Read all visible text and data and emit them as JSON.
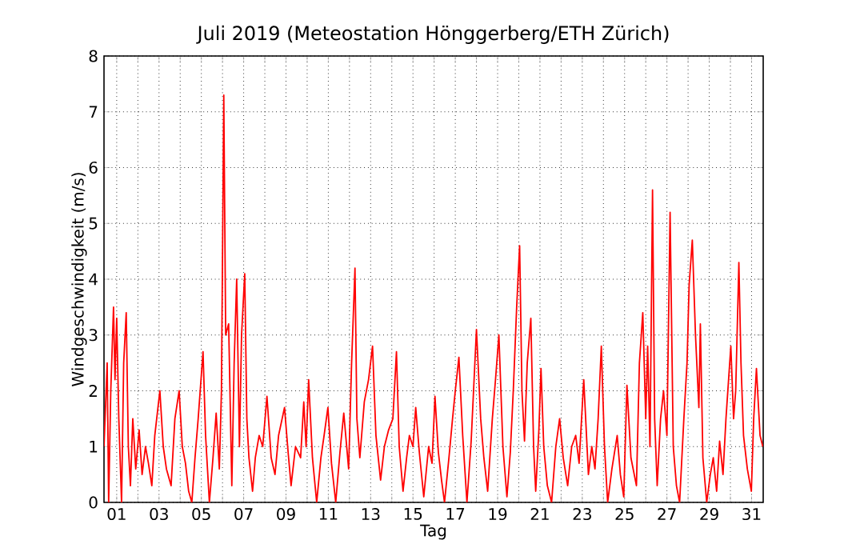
{
  "chart_data": {
    "type": "line",
    "title": "Juli 2019  (Meteostation Hönggerberg/ETH Zürich)",
    "xlabel": "Tag",
    "ylabel": "Windgeschwindigkeit (m/s)",
    "xlim": [
      0.4,
      31.55
    ],
    "ylim": [
      0,
      8
    ],
    "xticks": [
      {
        "value": 1,
        "label": "01"
      },
      {
        "value": 2,
        "label": null
      },
      {
        "value": 3,
        "label": "03"
      },
      {
        "value": 4,
        "label": null
      },
      {
        "value": 5,
        "label": "05"
      },
      {
        "value": 6,
        "label": null
      },
      {
        "value": 7,
        "label": "07"
      },
      {
        "value": 8,
        "label": null
      },
      {
        "value": 9,
        "label": "09"
      },
      {
        "value": 10,
        "label": null
      },
      {
        "value": 11,
        "label": "11"
      },
      {
        "value": 12,
        "label": null
      },
      {
        "value": 13,
        "label": "13"
      },
      {
        "value": 14,
        "label": null
      },
      {
        "value": 15,
        "label": "15"
      },
      {
        "value": 16,
        "label": null
      },
      {
        "value": 17,
        "label": "17"
      },
      {
        "value": 18,
        "label": null
      },
      {
        "value": 19,
        "label": "19"
      },
      {
        "value": 20,
        "label": null
      },
      {
        "value": 21,
        "label": "21"
      },
      {
        "value": 22,
        "label": null
      },
      {
        "value": 23,
        "label": "23"
      },
      {
        "value": 24,
        "label": null
      },
      {
        "value": 25,
        "label": "25"
      },
      {
        "value": 26,
        "label": null
      },
      {
        "value": 27,
        "label": "27"
      },
      {
        "value": 28,
        "label": null
      },
      {
        "value": 29,
        "label": "29"
      },
      {
        "value": 30,
        "label": null
      },
      {
        "value": 31,
        "label": "31"
      }
    ],
    "yticks": [
      0,
      1,
      2,
      3,
      4,
      5,
      6,
      7,
      8
    ],
    "grid": true,
    "series": [
      {
        "color": "#ff0000",
        "x": [
          0.4,
          0.55,
          0.62,
          0.72,
          0.85,
          0.92,
          1.0,
          1.1,
          1.23,
          1.33,
          1.45,
          1.55,
          1.65,
          1.76,
          1.9,
          2.06,
          2.2,
          2.36,
          2.5,
          2.66,
          2.8,
          3.04,
          3.2,
          3.35,
          3.57,
          3.75,
          3.95,
          4.1,
          4.25,
          4.4,
          4.55,
          4.7,
          4.85,
          5.08,
          5.2,
          5.38,
          5.55,
          5.7,
          5.85,
          5.95,
          6.06,
          6.15,
          6.29,
          6.44,
          6.55,
          6.67,
          6.8,
          6.9,
          7.05,
          7.15,
          7.25,
          7.42,
          7.55,
          7.73,
          7.9,
          8.1,
          8.3,
          8.48,
          8.65,
          8.93,
          9.1,
          9.24,
          9.45,
          9.69,
          9.84,
          9.95,
          10.07,
          10.25,
          10.45,
          10.65,
          10.8,
          10.98,
          11.15,
          11.35,
          11.55,
          11.73,
          11.96,
          12.1,
          12.26,
          12.35,
          12.49,
          12.7,
          12.9,
          13.09,
          13.25,
          13.47,
          13.65,
          13.85,
          14.05,
          14.22,
          14.35,
          14.53,
          14.7,
          14.83,
          15.0,
          15.13,
          15.3,
          15.51,
          15.74,
          15.9,
          16.04,
          16.2,
          16.35,
          16.49,
          16.7,
          16.87,
          17.0,
          17.17,
          17.35,
          17.55,
          17.75,
          18.0,
          18.2,
          18.35,
          18.53,
          18.75,
          18.9,
          19.06,
          19.25,
          19.44,
          19.6,
          19.74,
          19.9,
          20.04,
          20.15,
          20.27,
          20.4,
          20.57,
          20.7,
          20.8,
          20.95,
          21.05,
          21.18,
          21.35,
          21.55,
          21.75,
          21.93,
          22.1,
          22.31,
          22.5,
          22.69,
          22.85,
          23.07,
          23.29,
          23.45,
          23.6,
          23.75,
          23.9,
          24.05,
          24.2,
          24.4,
          24.65,
          24.8,
          24.96,
          25.11,
          25.3,
          25.56,
          25.7,
          25.86,
          26.0,
          26.09,
          26.2,
          26.32,
          26.42,
          26.54,
          26.7,
          26.84,
          27.0,
          27.15,
          27.3,
          27.45,
          27.6,
          27.8,
          27.95,
          28.05,
          28.2,
          28.35,
          28.51,
          28.58,
          28.7,
          28.88,
          29.05,
          29.19,
          29.35,
          29.49,
          29.65,
          29.79,
          30.02,
          30.15,
          30.25,
          30.4,
          30.5,
          30.62,
          30.8,
          30.99,
          31.1,
          31.23,
          31.4,
          31.53
        ],
        "values": [
          1.0,
          2.5,
          0.0,
          2.0,
          3.5,
          2.2,
          3.3,
          1.5,
          0.0,
          2.5,
          3.4,
          1.0,
          0.3,
          1.5,
          0.6,
          1.3,
          0.5,
          1.0,
          0.7,
          0.3,
          1.2,
          2.0,
          1.0,
          0.6,
          0.3,
          1.5,
          2.0,
          1.0,
          0.7,
          0.2,
          0.0,
          0.8,
          1.5,
          2.7,
          1.2,
          0.0,
          0.8,
          1.6,
          0.6,
          2.0,
          7.3,
          3.0,
          3.2,
          0.3,
          2.5,
          4.0,
          1.0,
          3.0,
          4.1,
          1.5,
          0.8,
          0.2,
          0.8,
          1.2,
          1.0,
          1.9,
          0.8,
          0.5,
          1.2,
          1.7,
          0.9,
          0.3,
          1.0,
          0.8,
          1.8,
          1.0,
          2.2,
          0.8,
          0.0,
          0.8,
          1.2,
          1.7,
          0.7,
          0.0,
          0.9,
          1.6,
          0.6,
          2.5,
          4.2,
          1.5,
          0.8,
          1.8,
          2.2,
          2.8,
          1.2,
          0.4,
          1.0,
          1.3,
          1.5,
          2.7,
          1.0,
          0.2,
          0.8,
          1.2,
          1.0,
          1.7,
          0.9,
          0.1,
          1.0,
          0.7,
          1.9,
          0.9,
          0.4,
          0.0,
          0.8,
          1.5,
          2.0,
          2.6,
          1.2,
          0.0,
          1.1,
          3.1,
          1.5,
          0.8,
          0.2,
          1.5,
          2.2,
          3.0,
          1.0,
          0.1,
          0.9,
          2.0,
          3.5,
          4.6,
          2.0,
          1.1,
          2.5,
          3.3,
          1.0,
          0.2,
          1.3,
          2.4,
          1.0,
          0.3,
          0.0,
          1.0,
          1.5,
          0.8,
          0.3,
          1.0,
          1.2,
          0.7,
          2.2,
          0.5,
          1.0,
          0.6,
          1.5,
          2.8,
          1.0,
          0.0,
          0.6,
          1.2,
          0.5,
          0.1,
          2.1,
          0.8,
          0.3,
          2.5,
          3.4,
          1.5,
          2.8,
          1.0,
          5.6,
          1.5,
          0.3,
          1.5,
          2.0,
          1.2,
          5.2,
          1.0,
          0.3,
          0.0,
          1.5,
          2.5,
          3.9,
          4.7,
          3.0,
          1.7,
          3.2,
          0.8,
          0.0,
          0.5,
          0.8,
          0.2,
          1.1,
          0.5,
          1.5,
          2.8,
          1.5,
          2.0,
          4.3,
          2.5,
          1.2,
          0.6,
          0.2,
          1.5,
          2.4,
          1.2,
          1.0
        ]
      }
    ]
  }
}
